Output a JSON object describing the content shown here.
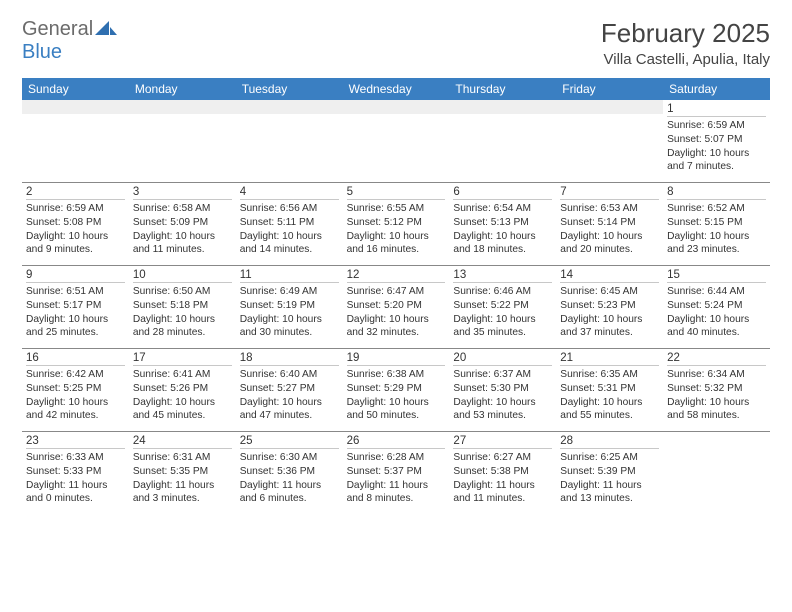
{
  "logo": {
    "text1": "General",
    "text2": "Blue"
  },
  "title": "February 2025",
  "location": "Villa Castelli, Apulia, Italy",
  "colors": {
    "header_bg": "#3a7fc2",
    "header_fg": "#ffffff",
    "blank_bg": "#efefef",
    "text": "#333333",
    "logo_gray": "#6b6b6b",
    "logo_blue": "#3a7fc2"
  },
  "weekdays": [
    "Sunday",
    "Monday",
    "Tuesday",
    "Wednesday",
    "Thursday",
    "Friday",
    "Saturday"
  ],
  "weeks": [
    [
      null,
      null,
      null,
      null,
      null,
      null,
      {
        "d": "1",
        "sr": "Sunrise: 6:59 AM",
        "ss": "Sunset: 5:07 PM",
        "dl": "Daylight: 10 hours and 7 minutes."
      }
    ],
    [
      {
        "d": "2",
        "sr": "Sunrise: 6:59 AM",
        "ss": "Sunset: 5:08 PM",
        "dl": "Daylight: 10 hours and 9 minutes."
      },
      {
        "d": "3",
        "sr": "Sunrise: 6:58 AM",
        "ss": "Sunset: 5:09 PM",
        "dl": "Daylight: 10 hours and 11 minutes."
      },
      {
        "d": "4",
        "sr": "Sunrise: 6:56 AM",
        "ss": "Sunset: 5:11 PM",
        "dl": "Daylight: 10 hours and 14 minutes."
      },
      {
        "d": "5",
        "sr": "Sunrise: 6:55 AM",
        "ss": "Sunset: 5:12 PM",
        "dl": "Daylight: 10 hours and 16 minutes."
      },
      {
        "d": "6",
        "sr": "Sunrise: 6:54 AM",
        "ss": "Sunset: 5:13 PM",
        "dl": "Daylight: 10 hours and 18 minutes."
      },
      {
        "d": "7",
        "sr": "Sunrise: 6:53 AM",
        "ss": "Sunset: 5:14 PM",
        "dl": "Daylight: 10 hours and 20 minutes."
      },
      {
        "d": "8",
        "sr": "Sunrise: 6:52 AM",
        "ss": "Sunset: 5:15 PM",
        "dl": "Daylight: 10 hours and 23 minutes."
      }
    ],
    [
      {
        "d": "9",
        "sr": "Sunrise: 6:51 AM",
        "ss": "Sunset: 5:17 PM",
        "dl": "Daylight: 10 hours and 25 minutes."
      },
      {
        "d": "10",
        "sr": "Sunrise: 6:50 AM",
        "ss": "Sunset: 5:18 PM",
        "dl": "Daylight: 10 hours and 28 minutes."
      },
      {
        "d": "11",
        "sr": "Sunrise: 6:49 AM",
        "ss": "Sunset: 5:19 PM",
        "dl": "Daylight: 10 hours and 30 minutes."
      },
      {
        "d": "12",
        "sr": "Sunrise: 6:47 AM",
        "ss": "Sunset: 5:20 PM",
        "dl": "Daylight: 10 hours and 32 minutes."
      },
      {
        "d": "13",
        "sr": "Sunrise: 6:46 AM",
        "ss": "Sunset: 5:22 PM",
        "dl": "Daylight: 10 hours and 35 minutes."
      },
      {
        "d": "14",
        "sr": "Sunrise: 6:45 AM",
        "ss": "Sunset: 5:23 PM",
        "dl": "Daylight: 10 hours and 37 minutes."
      },
      {
        "d": "15",
        "sr": "Sunrise: 6:44 AM",
        "ss": "Sunset: 5:24 PM",
        "dl": "Daylight: 10 hours and 40 minutes."
      }
    ],
    [
      {
        "d": "16",
        "sr": "Sunrise: 6:42 AM",
        "ss": "Sunset: 5:25 PM",
        "dl": "Daylight: 10 hours and 42 minutes."
      },
      {
        "d": "17",
        "sr": "Sunrise: 6:41 AM",
        "ss": "Sunset: 5:26 PM",
        "dl": "Daylight: 10 hours and 45 minutes."
      },
      {
        "d": "18",
        "sr": "Sunrise: 6:40 AM",
        "ss": "Sunset: 5:27 PM",
        "dl": "Daylight: 10 hours and 47 minutes."
      },
      {
        "d": "19",
        "sr": "Sunrise: 6:38 AM",
        "ss": "Sunset: 5:29 PM",
        "dl": "Daylight: 10 hours and 50 minutes."
      },
      {
        "d": "20",
        "sr": "Sunrise: 6:37 AM",
        "ss": "Sunset: 5:30 PM",
        "dl": "Daylight: 10 hours and 53 minutes."
      },
      {
        "d": "21",
        "sr": "Sunrise: 6:35 AM",
        "ss": "Sunset: 5:31 PM",
        "dl": "Daylight: 10 hours and 55 minutes."
      },
      {
        "d": "22",
        "sr": "Sunrise: 6:34 AM",
        "ss": "Sunset: 5:32 PM",
        "dl": "Daylight: 10 hours and 58 minutes."
      }
    ],
    [
      {
        "d": "23",
        "sr": "Sunrise: 6:33 AM",
        "ss": "Sunset: 5:33 PM",
        "dl": "Daylight: 11 hours and 0 minutes."
      },
      {
        "d": "24",
        "sr": "Sunrise: 6:31 AM",
        "ss": "Sunset: 5:35 PM",
        "dl": "Daylight: 11 hours and 3 minutes."
      },
      {
        "d": "25",
        "sr": "Sunrise: 6:30 AM",
        "ss": "Sunset: 5:36 PM",
        "dl": "Daylight: 11 hours and 6 minutes."
      },
      {
        "d": "26",
        "sr": "Sunrise: 6:28 AM",
        "ss": "Sunset: 5:37 PM",
        "dl": "Daylight: 11 hours and 8 minutes."
      },
      {
        "d": "27",
        "sr": "Sunrise: 6:27 AM",
        "ss": "Sunset: 5:38 PM",
        "dl": "Daylight: 11 hours and 11 minutes."
      },
      {
        "d": "28",
        "sr": "Sunrise: 6:25 AM",
        "ss": "Sunset: 5:39 PM",
        "dl": "Daylight: 11 hours and 13 minutes."
      },
      null
    ]
  ]
}
